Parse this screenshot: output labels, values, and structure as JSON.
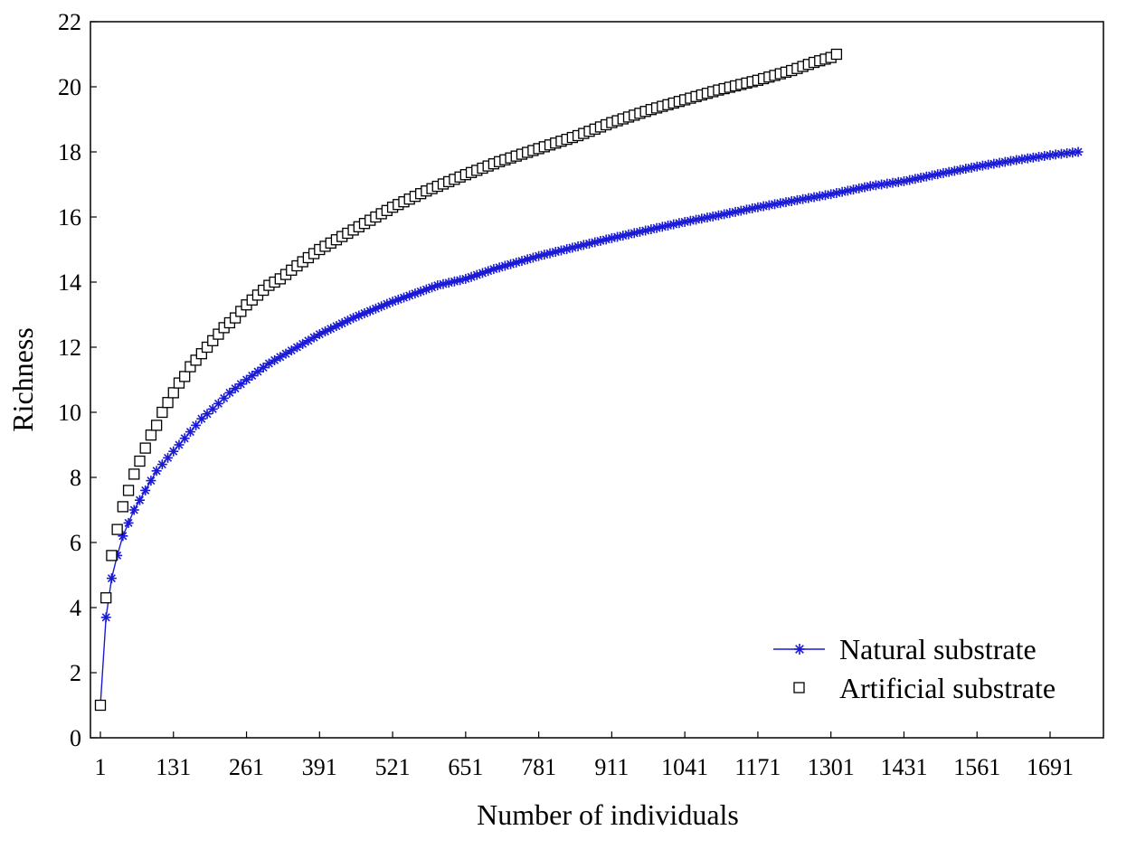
{
  "chart_data": {
    "type": "scatter",
    "title": "",
    "xlabel": "Number of individuals",
    "ylabel": "Richness",
    "xlim": [
      1,
      1820
    ],
    "ylim": [
      0,
      22
    ],
    "x_ticks": [
      "1",
      "131",
      "261",
      "391",
      "521",
      "651",
      "781",
      "911",
      "1041",
      "1171",
      "1301",
      "1431",
      "1561",
      "1691"
    ],
    "y_ticks": [
      "0",
      "2",
      "4",
      "6",
      "8",
      "10",
      "12",
      "14",
      "16",
      "18",
      "20",
      "22"
    ],
    "grid": false,
    "legend_position": "bottom-right",
    "series": [
      {
        "name": "Natural substrate",
        "marker": "asterisk",
        "line": true,
        "color": "#1a1ad6",
        "points": [
          [
            1,
            1
          ],
          [
            11,
            3.7
          ],
          [
            21,
            4.9
          ],
          [
            31,
            5.6
          ],
          [
            41,
            6.2
          ],
          [
            51,
            6.6
          ],
          [
            61,
            7.0
          ],
          [
            71,
            7.3
          ],
          [
            81,
            7.6
          ],
          [
            91,
            7.9
          ],
          [
            101,
            8.2
          ],
          [
            121,
            8.6
          ],
          [
            141,
            9.0
          ],
          [
            161,
            9.4
          ],
          [
            181,
            9.8
          ],
          [
            201,
            10.1
          ],
          [
            231,
            10.6
          ],
          [
            261,
            11.0
          ],
          [
            301,
            11.5
          ],
          [
            351,
            12.0
          ],
          [
            391,
            12.4
          ],
          [
            451,
            12.9
          ],
          [
            521,
            13.4
          ],
          [
            601,
            13.9
          ],
          [
            651,
            14.1
          ],
          [
            701,
            14.4
          ],
          [
            781,
            14.8
          ],
          [
            851,
            15.1
          ],
          [
            911,
            15.35
          ],
          [
            1001,
            15.7
          ],
          [
            1041,
            15.85
          ],
          [
            1101,
            16.05
          ],
          [
            1171,
            16.3
          ],
          [
            1251,
            16.55
          ],
          [
            1301,
            16.7
          ],
          [
            1371,
            16.95
          ],
          [
            1431,
            17.1
          ],
          [
            1501,
            17.35
          ],
          [
            1561,
            17.55
          ],
          [
            1631,
            17.75
          ],
          [
            1691,
            17.9
          ],
          [
            1741,
            18.0
          ]
        ]
      },
      {
        "name": "Artificial substrate",
        "marker": "open-square",
        "line": false,
        "color": "#000000",
        "points": [
          [
            1,
            1
          ],
          [
            11,
            4.3
          ],
          [
            21,
            5.6
          ],
          [
            31,
            6.4
          ],
          [
            41,
            7.1
          ],
          [
            51,
            7.6
          ],
          [
            61,
            8.1
          ],
          [
            71,
            8.5
          ],
          [
            81,
            8.9
          ],
          [
            91,
            9.3
          ],
          [
            101,
            9.6
          ],
          [
            111,
            10.0
          ],
          [
            121,
            10.3
          ],
          [
            131,
            10.6
          ],
          [
            141,
            10.9
          ],
          [
            151,
            11.1
          ],
          [
            161,
            11.4
          ],
          [
            171,
            11.6
          ],
          [
            181,
            11.8
          ],
          [
            191,
            12.0
          ],
          [
            201,
            12.2
          ],
          [
            221,
            12.6
          ],
          [
            241,
            12.9
          ],
          [
            261,
            13.3
          ],
          [
            281,
            13.6
          ],
          [
            301,
            13.9
          ],
          [
            321,
            14.1
          ],
          [
            351,
            14.5
          ],
          [
            391,
            15.0
          ],
          [
            421,
            15.3
          ],
          [
            461,
            15.7
          ],
          [
            521,
            16.3
          ],
          [
            581,
            16.8
          ],
          [
            651,
            17.3
          ],
          [
            711,
            17.7
          ],
          [
            781,
            18.1
          ],
          [
            851,
            18.5
          ],
          [
            911,
            18.9
          ],
          [
            981,
            19.3
          ],
          [
            1041,
            19.6
          ],
          [
            1101,
            19.9
          ],
          [
            1171,
            20.2
          ],
          [
            1231,
            20.5
          ],
          [
            1271,
            20.75
          ],
          [
            1301,
            20.9
          ],
          [
            1311,
            21.0
          ]
        ]
      }
    ]
  }
}
